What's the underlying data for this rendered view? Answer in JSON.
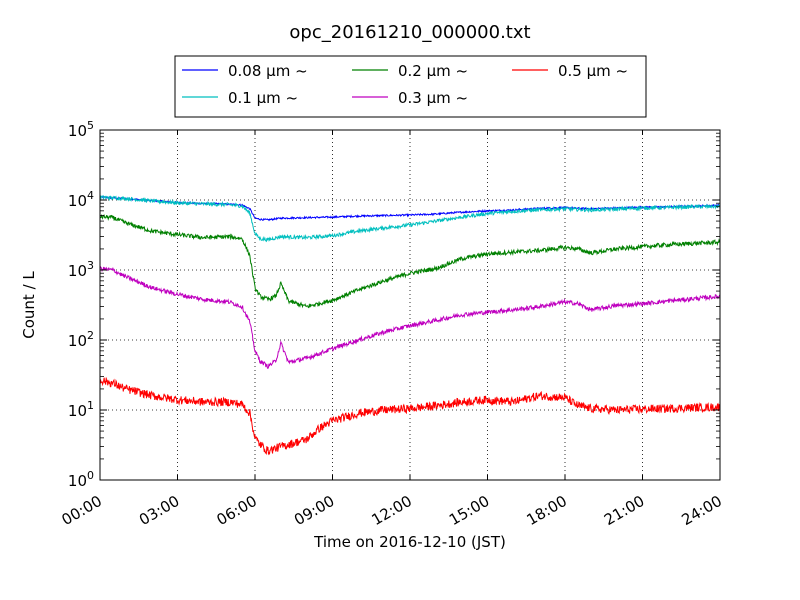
{
  "chart_data": {
    "type": "line",
    "title": "opc_20161210_000000.txt",
    "xlabel": "Time on 2016-12-10 (JST)",
    "ylabel": "Count / L",
    "xlim": [
      "00:00",
      "24:00"
    ],
    "ylim": [
      1,
      100000
    ],
    "yscale": "log",
    "grid": true,
    "legend_position": "top-center",
    "x_ticks": [
      "00:00",
      "03:00",
      "06:00",
      "09:00",
      "12:00",
      "15:00",
      "18:00",
      "21:00",
      "24:00"
    ],
    "y_ticks": [
      {
        "base": "10",
        "exp": "0"
      },
      {
        "base": "10",
        "exp": "1"
      },
      {
        "base": "10",
        "exp": "2"
      },
      {
        "base": "10",
        "exp": "3"
      },
      {
        "base": "10",
        "exp": "4"
      },
      {
        "base": "10",
        "exp": "5"
      }
    ],
    "series": [
      {
        "name": "0.08 μm ~",
        "color": "#0000ff",
        "x": [
          0,
          1,
          2,
          3,
          4,
          5,
          5.5,
          5.8,
          6.0,
          6.2,
          6.5,
          7,
          8,
          9,
          10,
          11,
          12,
          13,
          14,
          15,
          16,
          17,
          18,
          18.5,
          19,
          20,
          21,
          22,
          23,
          24
        ],
        "y": [
          11000,
          10500,
          9800,
          9200,
          8900,
          8700,
          8500,
          7500,
          5500,
          5300,
          5200,
          5500,
          5600,
          5700,
          5900,
          6000,
          6100,
          6300,
          6700,
          7000,
          7200,
          7600,
          7800,
          7600,
          7500,
          7700,
          7900,
          8000,
          8200,
          8400
        ]
      },
      {
        "name": "0.1 μm ~",
        "color": "#00bfbf",
        "x": [
          0,
          1,
          2,
          3,
          4,
          5,
          5.5,
          5.8,
          6.0,
          6.2,
          6.5,
          7,
          8,
          9,
          10,
          11,
          12,
          13,
          14,
          15,
          16,
          17,
          18,
          18.5,
          19,
          20,
          21,
          22,
          23,
          24
        ],
        "y": [
          11000,
          10500,
          9700,
          9100,
          8800,
          8600,
          8200,
          6500,
          3300,
          2800,
          2700,
          3000,
          2900,
          3100,
          3600,
          4000,
          4400,
          5000,
          5700,
          6400,
          6900,
          7200,
          7500,
          7300,
          7200,
          7400,
          7700,
          7800,
          8000,
          8100
        ]
      },
      {
        "name": "0.2 μm ~",
        "color": "#008000",
        "x": [
          0,
          0.5,
          1,
          2,
          3,
          4,
          5,
          5.5,
          5.8,
          6.0,
          6.2,
          6.5,
          6.8,
          7.0,
          7.3,
          8,
          9,
          10,
          11,
          12,
          13,
          14,
          15,
          16,
          17,
          18,
          18.5,
          19,
          20,
          21,
          22,
          23,
          24
        ],
        "y": [
          5800,
          5600,
          4700,
          3600,
          3200,
          2900,
          3000,
          2800,
          1600,
          550,
          420,
          380,
          420,
          640,
          360,
          300,
          370,
          520,
          700,
          900,
          1050,
          1450,
          1700,
          1800,
          1900,
          2100,
          2000,
          1750,
          2000,
          2150,
          2300,
          2400,
          2500
        ]
      },
      {
        "name": "0.3 μm ~",
        "color": "#bf00bf",
        "x": [
          0,
          0.5,
          1,
          2,
          3,
          4,
          5,
          5.5,
          5.8,
          6.0,
          6.2,
          6.5,
          6.8,
          7.0,
          7.3,
          8,
          9,
          10,
          11,
          12,
          13,
          14,
          15,
          16,
          17,
          18,
          18.5,
          19,
          20,
          21,
          22,
          23,
          24
        ],
        "y": [
          1050,
          1000,
          800,
          560,
          450,
          380,
          350,
          300,
          180,
          70,
          50,
          42,
          50,
          90,
          48,
          55,
          75,
          100,
          130,
          160,
          190,
          230,
          250,
          270,
          300,
          350,
          330,
          270,
          310,
          330,
          360,
          390,
          420
        ]
      },
      {
        "name": "0.5 μm ~",
        "color": "#ff0000",
        "x": [
          0,
          0.5,
          1,
          2,
          3,
          4,
          5,
          5.5,
          5.8,
          6.0,
          6.2,
          6.5,
          7,
          8,
          8.5,
          9,
          10,
          11,
          12,
          13,
          14,
          15,
          16,
          17,
          18,
          18.5,
          19,
          20,
          21,
          22,
          23,
          24
        ],
        "y": [
          27,
          24,
          20,
          16,
          14,
          13,
          13,
          12,
          9,
          4,
          3.2,
          2.6,
          3,
          3.8,
          5.5,
          7,
          9,
          10,
          10.5,
          11.5,
          13,
          14,
          13,
          16,
          15,
          11.5,
          10.5,
          10,
          10.3,
          10.5,
          10.8,
          11
        ]
      }
    ]
  }
}
